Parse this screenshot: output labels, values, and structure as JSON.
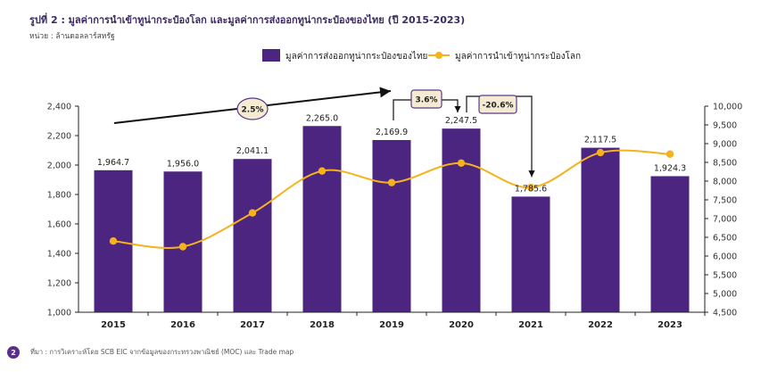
{
  "header": {
    "title": "รูปที่ 2 : มูลค่าการนำเข้าทูน่ากระป๋องโลก และมูลค่าการส่งออกทูน่ากระป๋องของไทย (ปี 2015-2023)",
    "unit": "หน่วย : ล้านดอลลาร์สหรัฐ"
  },
  "footer": {
    "page_number": "2",
    "source": "ที่มา : การวิเคราะห์โดย SCB EIC จากข้อมูลของกระทรวงพาณิชย์ (MOC) และ Trade map"
  },
  "colors": {
    "bar": "#4b2580",
    "line": "#f5b21b",
    "annotation_fill": "#f5ead2",
    "annotation_stroke": "#5a3a86",
    "text": "#3a2a5c"
  },
  "chart_data": {
    "type": "bar",
    "categories": [
      "2015",
      "2016",
      "2017",
      "2018",
      "2019",
      "2020",
      "2021",
      "2022",
      "2023"
    ],
    "series": [
      {
        "name": "มูลค่าการส่งออกทูน่ากระป๋องของไทย",
        "type": "bar",
        "axis": "left",
        "values": [
          1964.7,
          1956.0,
          2041.1,
          2265.0,
          2169.9,
          2247.5,
          1785.6,
          2117.5,
          1924.3
        ],
        "labels": [
          "1,964.7",
          "1,956.0",
          "2,041.1",
          "2,265.0",
          "2,169.9",
          "2,247.5",
          "1,785.6",
          "2,117.5",
          "1,924.3"
        ]
      },
      {
        "name": "มูลค่าการนำเข้าทูน่ากระป๋องโลก",
        "type": "line",
        "axis": "right",
        "values": [
          6400,
          6250,
          7150,
          8270,
          7960,
          8480,
          7830,
          8760,
          8720
        ]
      }
    ],
    "y_left": {
      "min": 1000,
      "max": 2400,
      "ticks": [
        "1,000",
        "1,200",
        "1,400",
        "1,600",
        "1,800",
        "2,000",
        "2,200",
        "2,400"
      ]
    },
    "y_right": {
      "min": 4500,
      "max": 10000,
      "ticks": [
        "4,500",
        "5,000",
        "5,500",
        "6,000",
        "6,500",
        "7,000",
        "7,500",
        "8,000",
        "8,500",
        "9,000",
        "9,500",
        "10,000"
      ]
    },
    "legend_position": "top-center",
    "annotations": [
      {
        "text": "2.5%",
        "style": "ellipse"
      },
      {
        "text": "3.6%",
        "style": "box"
      },
      {
        "text": "-20.6%",
        "style": "box"
      }
    ]
  }
}
